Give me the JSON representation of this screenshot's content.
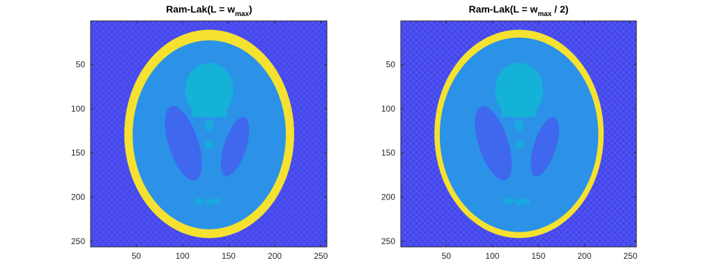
{
  "chart_data": [
    {
      "type": "heatmap",
      "title_main": "Ram-Lak(L = w",
      "title_sub": "max",
      "title_tail": ")",
      "xlim": [
        0.5,
        256.5
      ],
      "ylim": [
        0.5,
        256.5
      ],
      "y_reversed": true,
      "xticks": [
        50,
        100,
        150,
        200,
        250
      ],
      "yticks": [
        50,
        100,
        150,
        200,
        250
      ],
      "xtick_labels": [
        "50",
        "100",
        "150",
        "200",
        "250"
      ],
      "ytick_labels": [
        "50",
        "100",
        "150",
        "200",
        "250"
      ],
      "grid": false,
      "edge_sharpness": 1.0,
      "streak_strength": 1.0
    },
    {
      "type": "heatmap",
      "title_main": "Ram-Lak(L = w",
      "title_sub": "max",
      "title_tail": " / 2)",
      "xlim": [
        0.5,
        256.5
      ],
      "ylim": [
        0.5,
        256.5
      ],
      "y_reversed": true,
      "xticks": [
        50,
        100,
        150,
        200,
        250
      ],
      "yticks": [
        50,
        100,
        150,
        200,
        250
      ],
      "xtick_labels": [
        "50",
        "100",
        "150",
        "200",
        "250"
      ],
      "ytick_labels": [
        "50",
        "100",
        "150",
        "200",
        "250"
      ],
      "grid": false,
      "edge_sharpness": 0.55,
      "streak_strength": 1.4
    }
  ],
  "colors": {
    "background_field": "#4a4cf0",
    "skull_ring": "#f5e130",
    "brain_tissue": "#2b92e8",
    "ventricles": "#3f68ee",
    "upper_region": "#15b2d8",
    "small_blobs": "#1aa9dc"
  }
}
